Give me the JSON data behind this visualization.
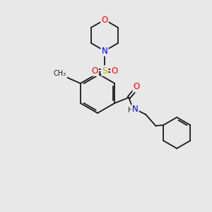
{
  "bg_color": "#e8e8e8",
  "bond_color": "#1a1a1a",
  "colors": {
    "O": "#ff0000",
    "N": "#0000ff",
    "S": "#ccaa00",
    "C": "#1a1a1a"
  },
  "font_size_atom": 7.5,
  "line_width": 1.3
}
